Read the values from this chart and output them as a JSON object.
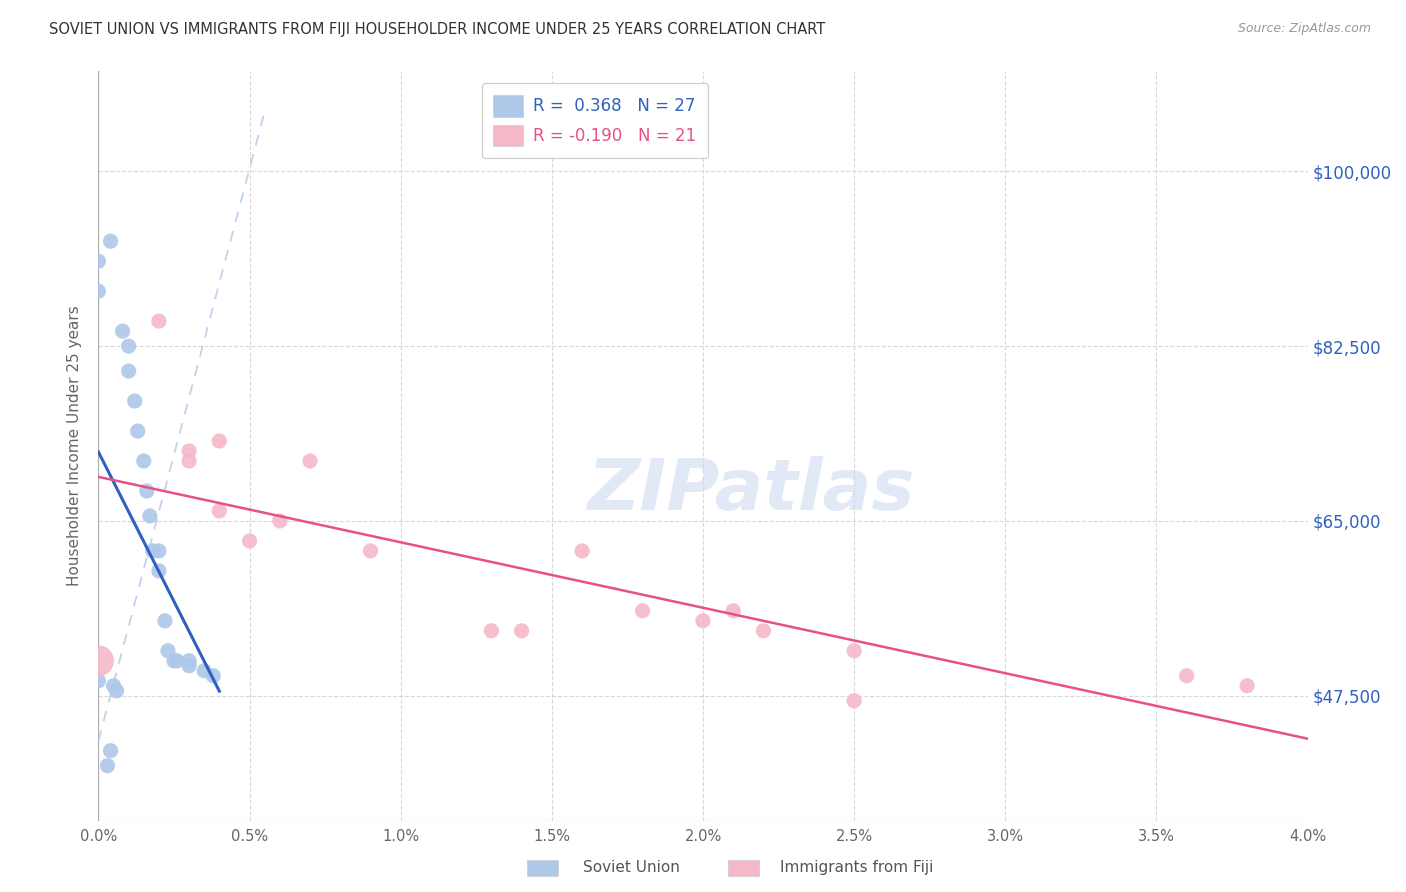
{
  "title": "SOVIET UNION VS IMMIGRANTS FROM FIJI HOUSEHOLDER INCOME UNDER 25 YEARS CORRELATION CHART",
  "source": "Source: ZipAtlas.com",
  "ylabel": "Householder Income Under 25 years",
  "ytick_labels": [
    "$47,500",
    "$65,000",
    "$82,500",
    "$100,000"
  ],
  "ytick_values": [
    47500,
    65000,
    82500,
    100000
  ],
  "xlim": [
    0.0,
    0.04
  ],
  "ylim": [
    35000,
    110000
  ],
  "legend1_r": "0.368",
  "legend1_n": "27",
  "legend2_r": "-0.190",
  "legend2_n": "21",
  "soviet_color": "#adc8e8",
  "fiji_color": "#f5b8c8",
  "soviet_line_color": "#3060c0",
  "fiji_line_color": "#e8508a",
  "diagonal_color": "#b0c8e8",
  "watermark": "ZIPatlas",
  "soviet_x": [
    0.0004,
    0.0,
    0.0,
    0.0008,
    0.001,
    0.001,
    0.0012,
    0.0013,
    0.0015,
    0.0016,
    0.0017,
    0.0018,
    0.002,
    0.002,
    0.0022,
    0.0023,
    0.0025,
    0.0026,
    0.003,
    0.003,
    0.0035,
    0.0038,
    0.0,
    0.0005,
    0.0006,
    0.0004,
    0.0003
  ],
  "soviet_y": [
    93000,
    91000,
    88000,
    84000,
    82500,
    80000,
    77000,
    74000,
    71000,
    68000,
    65500,
    62000,
    62000,
    60000,
    55000,
    52000,
    51000,
    51000,
    51000,
    50500,
    50000,
    49500,
    49000,
    48500,
    48000,
    42000,
    40500
  ],
  "fiji_x": [
    0.0,
    0.002,
    0.003,
    0.003,
    0.004,
    0.004,
    0.005,
    0.006,
    0.007,
    0.009,
    0.013,
    0.014,
    0.016,
    0.018,
    0.02,
    0.021,
    0.022,
    0.025,
    0.025,
    0.036,
    0.038
  ],
  "fiji_y": [
    51000,
    85000,
    72000,
    71000,
    73000,
    66000,
    63000,
    65000,
    71000,
    62000,
    54000,
    54000,
    62000,
    56000,
    55000,
    56000,
    54000,
    52000,
    47000,
    49500,
    48500
  ],
  "fiji_size_large_idx": 0,
  "soviet_marker_size": 120,
  "fiji_marker_size": 120,
  "fiji_large_size": 500
}
